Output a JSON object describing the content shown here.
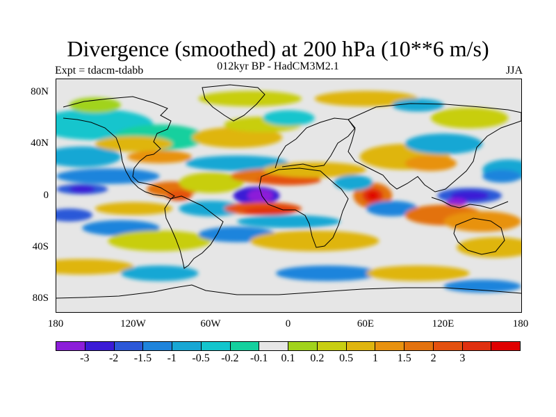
{
  "title": "Divergence (smoothed) at 200 hPa (10**6 m/s)",
  "subtitle": "012kyr BP - HadCM3M2.1",
  "experiment_label": "Expt = tdacm-tdabb",
  "season_label": "JJA",
  "map": {
    "background_color": "#e6e6e6",
    "coastline_color": "#000000",
    "lat_range": [
      -90,
      90
    ],
    "lon_range": [
      -180,
      180
    ],
    "lat_ticks": [
      "80N",
      "40N",
      "0",
      "40S",
      "80S"
    ],
    "lon_ticks": [
      "180",
      "120W",
      "60W",
      "0",
      "60E",
      "120E",
      "180"
    ]
  },
  "legend": {
    "colors": [
      "#8c1ed9",
      "#3b1bd6",
      "#2c58d8",
      "#1f84dc",
      "#18a7d4",
      "#13c5cd",
      "#14d09e",
      "#e6e6e6",
      "#a1d31c",
      "#c8ce11",
      "#dfb50f",
      "#e89210",
      "#e3720e",
      "#e4510f",
      "#e0300f",
      "#e00000"
    ],
    "labels": [
      "-3",
      "-2",
      "-1.5",
      "-1",
      "-0.5",
      "-0.2",
      "-0.1",
      "0.1",
      "0.2",
      "0.5",
      "1",
      "1.5",
      "2",
      "3"
    ]
  }
}
